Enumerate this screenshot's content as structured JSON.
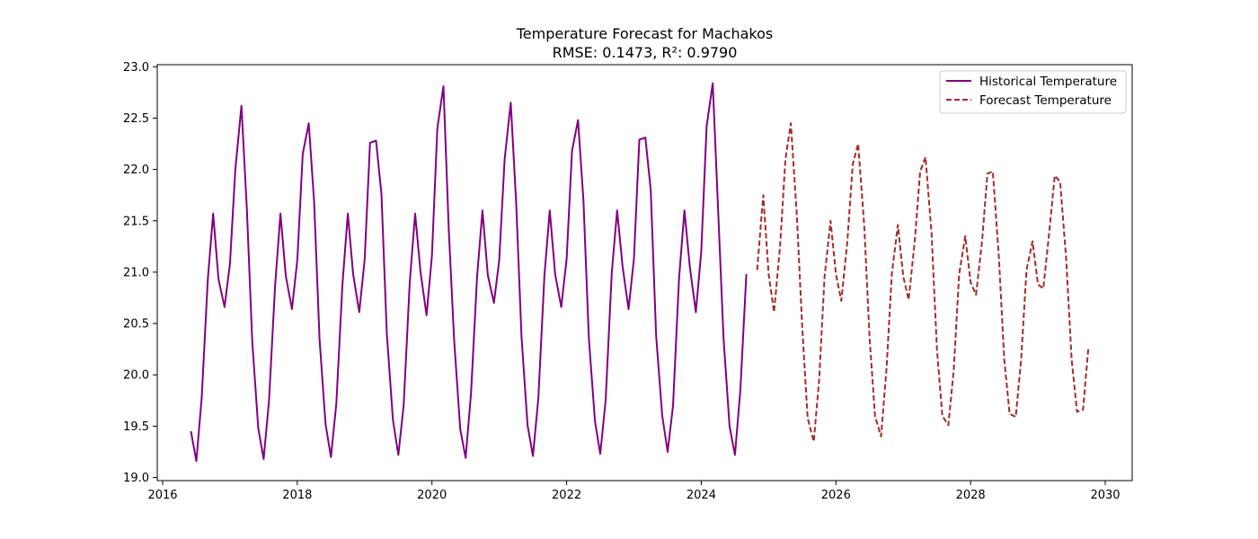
{
  "chart_data": {
    "type": "line",
    "title": "Temperature Forecast for Machakos",
    "subtitle": "RMSE: 0.1473, R²: 0.9790",
    "xlabel": "",
    "ylabel": "",
    "xlim": [
      2015.92,
      2030.4
    ],
    "ylim": [
      18.97,
      23.02
    ],
    "xticks": [
      2016,
      2018,
      2020,
      2022,
      2024,
      2026,
      2028,
      2030
    ],
    "yticks": [
      19.0,
      19.5,
      20.0,
      20.5,
      21.0,
      21.5,
      22.0,
      22.5,
      23.0
    ],
    "grid": false,
    "legend": "top-right",
    "series": [
      {
        "name": "Historical Temperature",
        "color": "#800080",
        "dash": "solid",
        "x": [
          2016.42,
          2016.5,
          2016.58,
          2016.67,
          2016.75,
          2016.83,
          2016.92,
          2017.0,
          2017.08,
          2017.17,
          2017.25,
          2017.33,
          2017.42,
          2017.5,
          2017.58,
          2017.67,
          2017.75,
          2017.83,
          2017.92,
          2018.0,
          2018.08,
          2018.17,
          2018.25,
          2018.33,
          2018.42,
          2018.5,
          2018.58,
          2018.67,
          2018.75,
          2018.83,
          2018.92,
          2019.0,
          2019.08,
          2019.17,
          2019.25,
          2019.33,
          2019.42,
          2019.5,
          2019.58,
          2019.67,
          2019.75,
          2019.83,
          2019.92,
          2020.0,
          2020.08,
          2020.17,
          2020.25,
          2020.33,
          2020.42,
          2020.5,
          2020.58,
          2020.67,
          2020.75,
          2020.83,
          2020.92,
          2021.0,
          2021.08,
          2021.17,
          2021.25,
          2021.33,
          2021.42,
          2021.5,
          2021.58,
          2021.67,
          2021.75,
          2021.83,
          2021.92,
          2022.0,
          2022.08,
          2022.17,
          2022.25,
          2022.33,
          2022.42,
          2022.5,
          2022.58,
          2022.67,
          2022.75,
          2022.83,
          2022.92,
          2023.0,
          2023.08,
          2023.17,
          2023.25,
          2023.33,
          2023.42,
          2023.5,
          2023.58,
          2023.67,
          2023.75,
          2023.83,
          2023.92,
          2024.0,
          2024.08,
          2024.17,
          2024.25,
          2024.33,
          2024.42,
          2024.5,
          2024.58,
          2024.67
        ],
        "y": [
          19.45,
          19.16,
          19.78,
          20.92,
          21.57,
          20.93,
          20.66,
          21.08,
          22.0,
          22.62,
          21.62,
          20.33,
          19.48,
          19.18,
          19.75,
          20.86,
          21.57,
          20.96,
          20.64,
          21.12,
          22.15,
          22.45,
          21.68,
          20.35,
          19.52,
          19.2,
          19.72,
          20.88,
          21.57,
          20.98,
          20.61,
          21.12,
          22.26,
          22.28,
          21.76,
          20.4,
          19.56,
          19.22,
          19.7,
          20.9,
          21.57,
          21.0,
          20.58,
          21.16,
          22.4,
          22.81,
          21.4,
          20.34,
          19.47,
          19.19,
          19.82,
          20.95,
          21.6,
          20.97,
          20.7,
          21.12,
          22.1,
          22.65,
          21.68,
          20.37,
          19.51,
          19.21,
          19.77,
          20.97,
          21.6,
          20.98,
          20.66,
          21.13,
          22.18,
          22.48,
          21.7,
          20.36,
          19.55,
          19.23,
          19.75,
          20.99,
          21.6,
          21.06,
          20.64,
          21.13,
          22.29,
          22.31,
          21.8,
          20.38,
          19.6,
          19.25,
          19.7,
          20.94,
          21.6,
          21.05,
          20.61,
          21.2,
          22.42,
          22.84,
          21.6,
          20.36,
          19.5,
          19.22,
          19.85,
          20.98
        ]
      },
      {
        "name": "Forecast Temperature",
        "color": "#a52a2a",
        "dash": "dashed",
        "x": [
          2024.83,
          2024.92,
          2025.0,
          2025.08,
          2025.17,
          2025.25,
          2025.33,
          2025.42,
          2025.5,
          2025.58,
          2025.67,
          2025.75,
          2025.83,
          2025.92,
          2026.0,
          2026.08,
          2026.17,
          2026.25,
          2026.33,
          2026.42,
          2026.5,
          2026.58,
          2026.67,
          2026.75,
          2026.83,
          2026.92,
          2027.0,
          2027.08,
          2027.17,
          2027.25,
          2027.33,
          2027.42,
          2027.5,
          2027.58,
          2027.67,
          2027.75,
          2027.83,
          2027.92,
          2028.0,
          2028.08,
          2028.17,
          2028.25,
          2028.33,
          2028.42,
          2028.5,
          2028.58,
          2028.67,
          2028.75,
          2028.83,
          2028.92,
          2029.0,
          2029.08,
          2029.17,
          2029.25,
          2029.33,
          2029.42,
          2029.5,
          2029.58,
          2029.67,
          2029.75
        ],
        "y": [
          21.02,
          21.75,
          20.98,
          20.61,
          21.25,
          22.1,
          22.45,
          21.55,
          20.46,
          19.58,
          19.35,
          19.95,
          20.95,
          21.5,
          20.98,
          20.72,
          21.3,
          22.05,
          22.25,
          21.45,
          20.35,
          19.6,
          19.4,
          20.05,
          20.98,
          21.46,
          20.96,
          20.73,
          21.3,
          21.98,
          22.12,
          21.38,
          20.25,
          19.6,
          19.51,
          20.05,
          20.98,
          21.35,
          20.9,
          20.78,
          21.3,
          21.96,
          21.98,
          21.15,
          20.15,
          19.62,
          19.59,
          20.15,
          21.02,
          21.3,
          20.88,
          20.84,
          21.4,
          21.94,
          21.88,
          21.12,
          20.15,
          19.64,
          19.66,
          20.27
        ]
      }
    ]
  }
}
